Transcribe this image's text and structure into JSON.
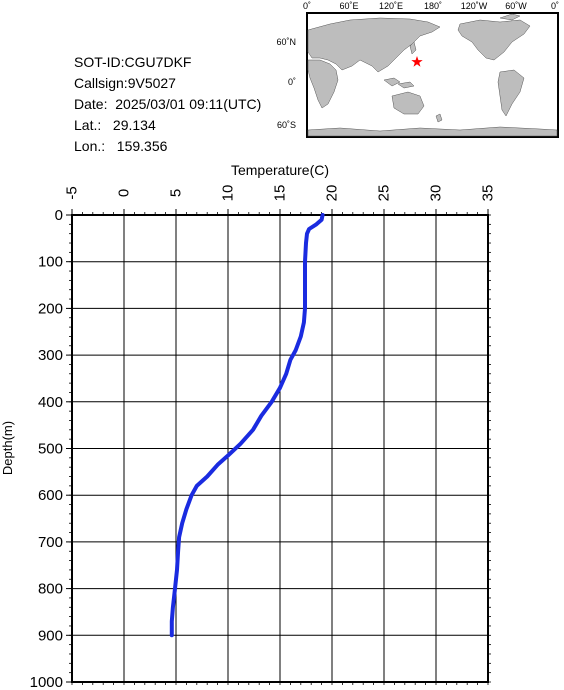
{
  "info": {
    "sot_id": "SOT-ID:CGU7DKF",
    "callsign": "Callsign:9V5027",
    "date": "Date:  2025/03/01 09:11(UTC)",
    "lat": "Lat.:   29.134",
    "lon": "Lon.:   159.356"
  },
  "map": {
    "lon_labels": [
      "0˚",
      "60˚E",
      "120˚E",
      "180˚",
      "120˚W",
      "60˚W",
      "0˚"
    ],
    "lat_labels": [
      "60˚N",
      "0˚",
      "60˚S"
    ],
    "marker": {
      "lat": 29.134,
      "lon": 159.356,
      "color": "#ff0000"
    },
    "colors": {
      "ocean": "#ffffff",
      "land": "#bdbdbd"
    }
  },
  "chart_data": {
    "type": "line",
    "xlabel": "Temperature(C)",
    "ylabel": "Depth(m)",
    "xlim": [
      -5,
      35
    ],
    "ylim": [
      0,
      1000
    ],
    "y_inverted": true,
    "x_axis_position": "top",
    "xticks": [
      "-5",
      "0",
      "5",
      "10",
      "15",
      "20",
      "25",
      "30",
      "35"
    ],
    "yticks": [
      "0",
      "100",
      "200",
      "300",
      "400",
      "500",
      "600",
      "700",
      "800",
      "900",
      "1000"
    ],
    "grid": true,
    "line_color": "#1a2be0",
    "series": [
      {
        "points": [
          [
            19.1,
            0
          ],
          [
            19.0,
            10
          ],
          [
            18.5,
            20
          ],
          [
            17.8,
            30
          ],
          [
            17.6,
            40
          ],
          [
            17.5,
            60
          ],
          [
            17.4,
            100
          ],
          [
            17.4,
            150
          ],
          [
            17.4,
            200
          ],
          [
            17.3,
            230
          ],
          [
            17.0,
            260
          ],
          [
            16.5,
            290
          ],
          [
            16.0,
            310
          ],
          [
            15.6,
            340
          ],
          [
            15.0,
            370
          ],
          [
            14.2,
            400
          ],
          [
            13.2,
            430
          ],
          [
            12.4,
            460
          ],
          [
            11.2,
            490
          ],
          [
            10.0,
            515
          ],
          [
            9.0,
            535
          ],
          [
            8.0,
            560
          ],
          [
            7.0,
            580
          ],
          [
            6.5,
            600
          ],
          [
            6.0,
            630
          ],
          [
            5.6,
            660
          ],
          [
            5.3,
            690
          ],
          [
            5.2,
            720
          ],
          [
            5.1,
            760
          ],
          [
            4.9,
            800
          ],
          [
            4.7,
            840
          ],
          [
            4.6,
            870
          ],
          [
            4.6,
            900
          ]
        ]
      }
    ]
  }
}
